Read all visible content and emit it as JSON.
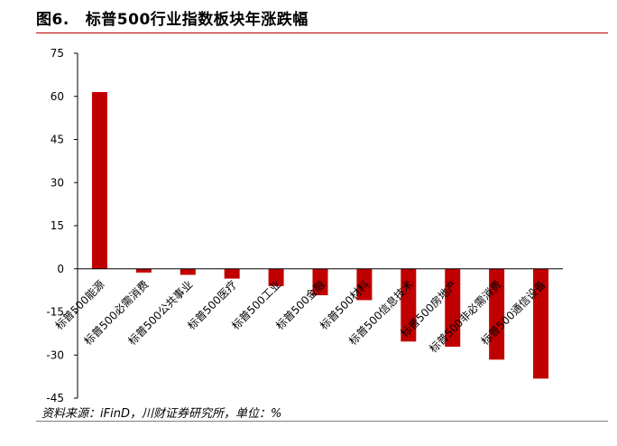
{
  "figure": {
    "number": "图6.",
    "title": "标普500行业指数板块年涨跌幅"
  },
  "source": {
    "text": "资料来源：iFinD，川财证券研究所，单位：%"
  },
  "colors": {
    "bar": "#c00000",
    "rule": "#c00000"
  },
  "chart_data": {
    "type": "bar",
    "title": "",
    "xlabel": "",
    "ylabel": "",
    "ylim": [
      -45,
      75
    ],
    "yticks": [
      75,
      60,
      45,
      30,
      15,
      0,
      -15,
      -30,
      -45
    ],
    "grid": false,
    "legend": "none",
    "categories": [
      "标普500能源",
      "标普500必需消费",
      "标普500公共事业",
      "标普500医疗",
      "标普500工业",
      "标普500金融",
      "标普500材料",
      "标普500信息技术",
      "标普500房地产",
      "标普500非必需消费",
      "标普500通信设备"
    ],
    "values": [
      61.5,
      -1.3,
      -2.1,
      -3.4,
      -6.0,
      -9.2,
      -10.9,
      -25.3,
      -27.1,
      -31.6,
      -38.2
    ]
  }
}
